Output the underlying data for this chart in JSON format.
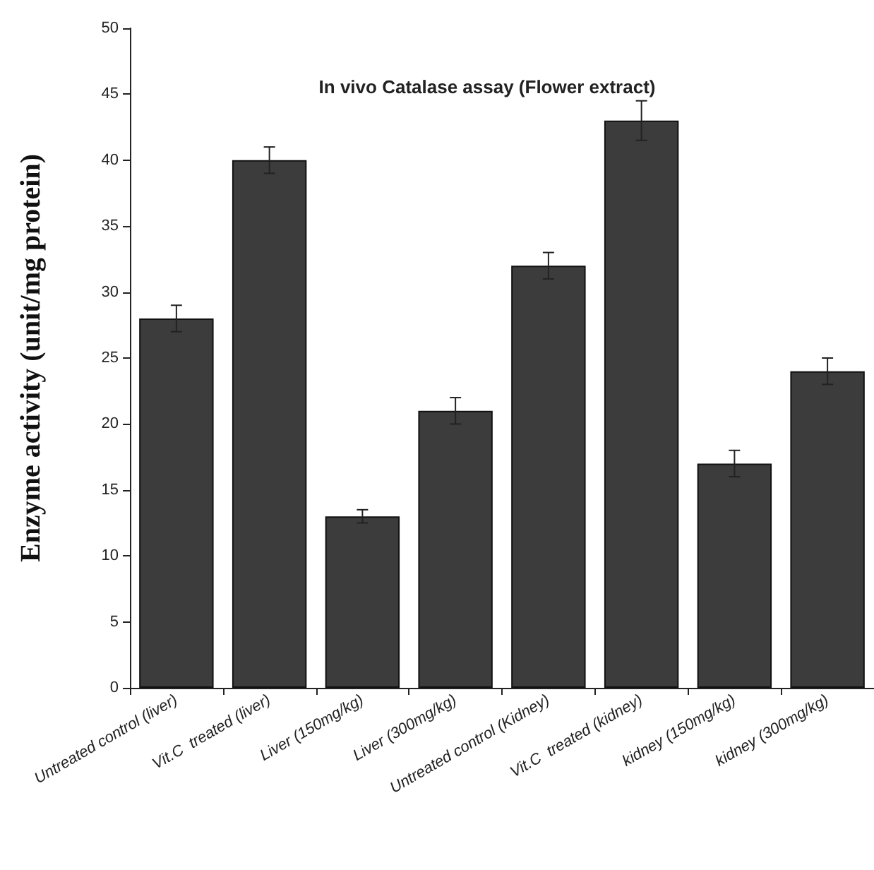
{
  "chart_data": {
    "type": "bar",
    "title": "In vivo Catalase assay (Flower extract)",
    "ylabel": "Enzyme activity (unit/mg protein)",
    "categories": [
      "Untreated control (liver)",
      "Vit.C  treated (liver)",
      "Liver (150mg/kg)",
      "Liver (300mg/kg)",
      "Untreated control (Kidney)",
      "Vit.C  treated (kidney)",
      "kidney (150mg/kg)",
      "kidney (300mg/kg)"
    ],
    "values": [
      28,
      40,
      13,
      21,
      32,
      43,
      17,
      24
    ],
    "errors": [
      1,
      1,
      0.5,
      1,
      1,
      1.5,
      1,
      1
    ],
    "color": "#3c3c3c",
    "ylim": [
      0,
      50
    ],
    "yticks": [
      0,
      5,
      10,
      15,
      20,
      25,
      30,
      35,
      40,
      45,
      50
    ],
    "grid": false
  }
}
